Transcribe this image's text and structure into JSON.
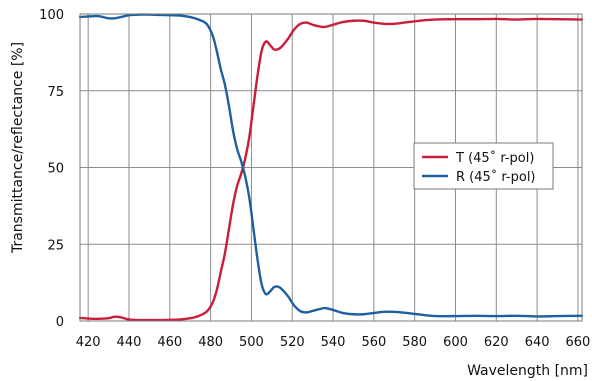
{
  "chart_data": {
    "type": "line",
    "title": "",
    "xlabel": "Wavelength [nm]",
    "ylabel": "Transmittance/reflectance [%]",
    "xlim": [
      416,
      662
    ],
    "ylim": [
      0,
      100
    ],
    "x_ticks": [
      420,
      440,
      460,
      480,
      500,
      520,
      540,
      560,
      580,
      600,
      620,
      640,
      660
    ],
    "y_ticks": [
      0,
      25,
      50,
      75,
      100
    ],
    "grid": true,
    "legend_position": "right-middle",
    "series": [
      {
        "name": "T (45˚ r-pol)",
        "color": "#c81e3a",
        "points": [
          [
            416,
            1.0
          ],
          [
            420,
            0.8
          ],
          [
            425,
            0.7
          ],
          [
            430,
            0.9
          ],
          [
            433,
            1.4
          ],
          [
            436,
            1.2
          ],
          [
            440,
            0.5
          ],
          [
            445,
            0.3
          ],
          [
            450,
            0.3
          ],
          [
            455,
            0.3
          ],
          [
            460,
            0.4
          ],
          [
            465,
            0.5
          ],
          [
            470,
            0.9
          ],
          [
            474,
            1.6
          ],
          [
            478,
            3.0
          ],
          [
            481,
            6.0
          ],
          [
            483,
            10.0
          ],
          [
            485,
            16.0
          ],
          [
            487,
            22.0
          ],
          [
            489,
            30.0
          ],
          [
            491,
            38.0
          ],
          [
            493,
            44.0
          ],
          [
            495,
            48.0
          ],
          [
            497,
            53.0
          ],
          [
            499,
            60.0
          ],
          [
            501,
            70.0
          ],
          [
            503,
            80.0
          ],
          [
            505,
            88.0
          ],
          [
            507,
            91.0
          ],
          [
            509,
            90.0
          ],
          [
            511,
            88.5
          ],
          [
            513,
            88.5
          ],
          [
            515,
            89.5
          ],
          [
            518,
            92.0
          ],
          [
            521,
            95.0
          ],
          [
            524,
            96.8
          ],
          [
            527,
            97.2
          ],
          [
            530,
            96.5
          ],
          [
            533,
            96.0
          ],
          [
            536,
            95.8
          ],
          [
            540,
            96.5
          ],
          [
            545,
            97.4
          ],
          [
            550,
            97.8
          ],
          [
            555,
            97.8
          ],
          [
            560,
            97.2
          ],
          [
            565,
            96.8
          ],
          [
            570,
            96.8
          ],
          [
            575,
            97.2
          ],
          [
            580,
            97.6
          ],
          [
            585,
            98.0
          ],
          [
            590,
            98.2
          ],
          [
            600,
            98.3
          ],
          [
            610,
            98.3
          ],
          [
            620,
            98.4
          ],
          [
            630,
            98.2
          ],
          [
            640,
            98.4
          ],
          [
            650,
            98.3
          ],
          [
            662,
            98.2
          ]
        ]
      },
      {
        "name": "R (45˚ r-pol)",
        "color": "#1f5fa0",
        "points": [
          [
            416,
            99.0
          ],
          [
            420,
            99.2
          ],
          [
            425,
            99.3
          ],
          [
            430,
            98.6
          ],
          [
            433,
            98.6
          ],
          [
            436,
            99.0
          ],
          [
            440,
            99.6
          ],
          [
            445,
            99.8
          ],
          [
            450,
            99.8
          ],
          [
            455,
            99.7
          ],
          [
            460,
            99.6
          ],
          [
            465,
            99.5
          ],
          [
            470,
            99.0
          ],
          [
            474,
            98.2
          ],
          [
            478,
            96.8
          ],
          [
            481,
            93.0
          ],
          [
            483,
            88.0
          ],
          [
            485,
            82.0
          ],
          [
            487,
            77.0
          ],
          [
            489,
            70.0
          ],
          [
            491,
            62.0
          ],
          [
            493,
            56.0
          ],
          [
            495,
            52.0
          ],
          [
            497,
            47.0
          ],
          [
            499,
            40.0
          ],
          [
            501,
            30.0
          ],
          [
            503,
            20.0
          ],
          [
            505,
            12.0
          ],
          [
            507,
            8.8
          ],
          [
            509,
            9.5
          ],
          [
            511,
            11.0
          ],
          [
            513,
            11.2
          ],
          [
            515,
            10.3
          ],
          [
            518,
            8.0
          ],
          [
            521,
            5.0
          ],
          [
            524,
            3.2
          ],
          [
            527,
            2.8
          ],
          [
            530,
            3.3
          ],
          [
            533,
            3.8
          ],
          [
            536,
            4.2
          ],
          [
            540,
            3.6
          ],
          [
            545,
            2.6
          ],
          [
            550,
            2.2
          ],
          [
            555,
            2.2
          ],
          [
            560,
            2.6
          ],
          [
            565,
            3.0
          ],
          [
            570,
            3.0
          ],
          [
            575,
            2.7
          ],
          [
            580,
            2.3
          ],
          [
            585,
            1.9
          ],
          [
            590,
            1.6
          ],
          [
            600,
            1.6
          ],
          [
            610,
            1.7
          ],
          [
            620,
            1.6
          ],
          [
            630,
            1.7
          ],
          [
            640,
            1.5
          ],
          [
            650,
            1.6
          ],
          [
            662,
            1.7
          ]
        ]
      }
    ]
  }
}
